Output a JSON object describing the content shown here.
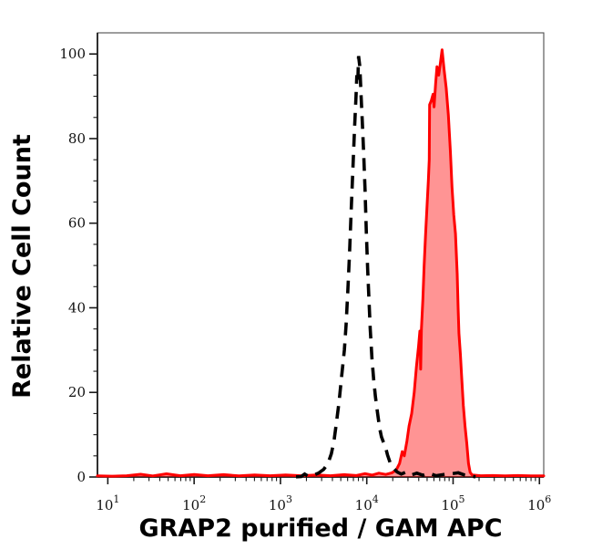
{
  "chart_data": {
    "type": "area",
    "subtype": "flow-cytometry-histogram-overlay",
    "title": "",
    "xlabel": "GRAP2 purified / GAM APC",
    "ylabel": "Relative Cell Count",
    "x_scale": "log10",
    "x_tick_base": "10",
    "x_tick_exponents": [
      1,
      2,
      3,
      4,
      5,
      6
    ],
    "xlim_log10": [
      0.88,
      6.05
    ],
    "y_ticks": [
      0,
      20,
      40,
      60,
      80,
      100
    ],
    "y_minor_step": 5,
    "ylim": [
      0,
      105
    ],
    "grid": false,
    "legend": "none",
    "colors": {
      "background": "#ffffff",
      "axis": "#333333",
      "tick": "#1a1a1a",
      "tick_text": "#111111",
      "label_text": "#000000",
      "red_stroke": "#ff0000",
      "red_fill": "rgba(255,0,0,0.42)",
      "dashed_stroke": "#000000"
    },
    "series": [
      {
        "name": "red filled histogram (stained sample)",
        "line_style": "solid",
        "color": "#ff0000",
        "fill": "rgba(255,0,0,0.42)",
        "stroke_width": 3,
        "peak_log10x": 4.87,
        "peak_height": 101,
        "points": [
          [
            0.88,
            0.25
          ],
          [
            1.05,
            0.2
          ],
          [
            1.22,
            0.3
          ],
          [
            1.38,
            0.65
          ],
          [
            1.52,
            0.25
          ],
          [
            1.68,
            0.75
          ],
          [
            1.84,
            0.3
          ],
          [
            2.0,
            0.6
          ],
          [
            2.16,
            0.3
          ],
          [
            2.34,
            0.55
          ],
          [
            2.52,
            0.25
          ],
          [
            2.7,
            0.5
          ],
          [
            2.88,
            0.3
          ],
          [
            3.06,
            0.5
          ],
          [
            3.24,
            0.3
          ],
          [
            3.42,
            0.5
          ],
          [
            3.58,
            0.3
          ],
          [
            3.74,
            0.55
          ],
          [
            3.88,
            0.35
          ],
          [
            3.98,
            0.8
          ],
          [
            4.06,
            0.45
          ],
          [
            4.14,
            0.9
          ],
          [
            4.22,
            0.6
          ],
          [
            4.29,
            1.0
          ],
          [
            4.34,
            1.6
          ],
          [
            4.38,
            3.2
          ],
          [
            4.41,
            6.0
          ],
          [
            4.435,
            5.0
          ],
          [
            4.465,
            8.5
          ],
          [
            4.49,
            12
          ],
          [
            4.52,
            15
          ],
          [
            4.55,
            20
          ],
          [
            4.575,
            26
          ],
          [
            4.6,
            31
          ],
          [
            4.615,
            34.5
          ],
          [
            4.625,
            25.5
          ],
          [
            4.633,
            35
          ],
          [
            4.65,
            42
          ],
          [
            4.665,
            50
          ],
          [
            4.68,
            57
          ],
          [
            4.7,
            65
          ],
          [
            4.713,
            70
          ],
          [
            4.724,
            75
          ],
          [
            4.728,
            88
          ],
          [
            4.748,
            89
          ],
          [
            4.768,
            90.5
          ],
          [
            4.78,
            87.5
          ],
          [
            4.798,
            93
          ],
          [
            4.813,
            97
          ],
          [
            4.833,
            95
          ],
          [
            4.85,
            97.5
          ],
          [
            4.872,
            101
          ],
          [
            4.895,
            96.5
          ],
          [
            4.92,
            92
          ],
          [
            4.945,
            85.5
          ],
          [
            4.968,
            77
          ],
          [
            4.988,
            68.5
          ],
          [
            5.008,
            62
          ],
          [
            5.028,
            57.5
          ],
          [
            5.048,
            48
          ],
          [
            5.058,
            40
          ],
          [
            5.068,
            34
          ],
          [
            5.085,
            29
          ],
          [
            5.098,
            24
          ],
          [
            5.118,
            17
          ],
          [
            5.138,
            12
          ],
          [
            5.158,
            8
          ],
          [
            5.178,
            3.2
          ],
          [
            5.198,
            1.1
          ],
          [
            5.22,
            0.5
          ],
          [
            5.32,
            0.3
          ],
          [
            5.46,
            0.35
          ],
          [
            5.6,
            0.25
          ],
          [
            5.75,
            0.35
          ],
          [
            5.9,
            0.25
          ],
          [
            6.05,
            0.25
          ]
        ]
      },
      {
        "name": "black dashed histogram (negative control)",
        "line_style": "dashed",
        "color": "#000000",
        "fill": "none",
        "stroke_width": 3.6,
        "dash_pattern": "14 9",
        "peak_log10x": 3.9,
        "peak_height": 99.5,
        "points": [
          [
            3.18,
            0.05
          ],
          [
            3.24,
            0.1
          ],
          [
            3.28,
            0.7
          ],
          [
            3.32,
            0.2
          ],
          [
            3.38,
            0.4
          ],
          [
            3.44,
            0.9
          ],
          [
            3.5,
            1.8
          ],
          [
            3.55,
            3.2
          ],
          [
            3.59,
            5.5
          ],
          [
            3.62,
            8.5
          ],
          [
            3.65,
            13
          ],
          [
            3.68,
            18
          ],
          [
            3.71,
            24
          ],
          [
            3.74,
            30
          ],
          [
            3.76,
            36
          ],
          [
            3.78,
            44
          ],
          [
            3.8,
            53
          ],
          [
            3.82,
            63
          ],
          [
            3.84,
            73
          ],
          [
            3.86,
            83
          ],
          [
            3.875,
            90
          ],
          [
            3.885,
            95
          ],
          [
            3.895,
            93
          ],
          [
            3.905,
            99.5
          ],
          [
            3.92,
            97
          ],
          [
            3.935,
            90
          ],
          [
            3.95,
            83
          ],
          [
            3.965,
            76
          ],
          [
            3.98,
            68
          ],
          [
            3.995,
            58
          ],
          [
            4.01,
            49
          ],
          [
            4.025,
            42
          ],
          [
            4.04,
            35
          ],
          [
            4.06,
            28
          ],
          [
            4.08,
            23
          ],
          [
            4.1,
            19
          ],
          [
            4.125,
            15
          ],
          [
            4.15,
            11.5
          ],
          [
            4.17,
            9.5
          ],
          [
            4.19,
            8.4
          ],
          [
            4.215,
            7.2
          ],
          [
            4.24,
            5.2
          ],
          [
            4.27,
            3.4
          ],
          [
            4.31,
            2.1
          ],
          [
            4.35,
            1.2
          ],
          [
            4.4,
            0.7
          ],
          [
            4.46,
            1.2
          ],
          [
            4.52,
            0.5
          ],
          [
            4.58,
            0.9
          ],
          [
            4.65,
            0.4
          ],
          [
            4.72,
            0.9
          ],
          [
            4.8,
            0.3
          ],
          [
            4.9,
            0.6
          ],
          [
            4.99,
            0.8
          ],
          [
            5.06,
            1.0
          ],
          [
            5.13,
            0.5
          ],
          [
            5.19,
            0.25
          ],
          [
            5.26,
            0.05
          ]
        ]
      }
    ]
  }
}
